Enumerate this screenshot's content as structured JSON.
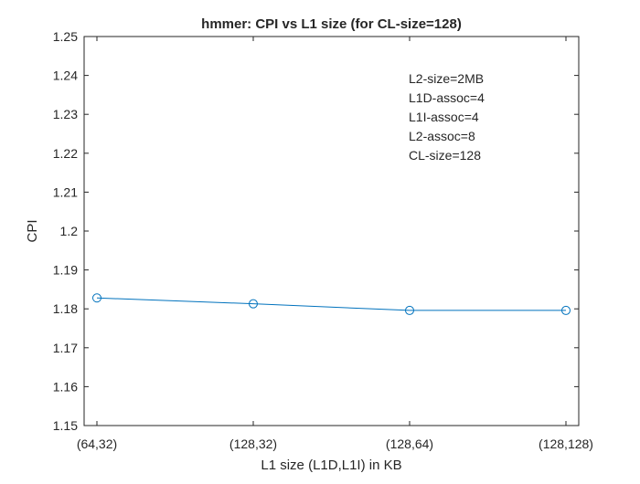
{
  "chart_data": {
    "type": "line",
    "title": "hmmer: CPI vs L1 size (for CL-size=128)",
    "xlabel": "L1 size (L1D,L1I) in KB",
    "ylabel": "CPI",
    "categories": [
      "(64,32)",
      "(128,32)",
      "(128,64)",
      "(128,128)"
    ],
    "series": [
      {
        "values": [
          1.1828,
          1.1813,
          1.1796,
          1.1796
        ],
        "color": "#0072BD",
        "marker": "circle"
      }
    ],
    "ylim": [
      1.15,
      1.25
    ],
    "yticks": [
      1.15,
      1.16,
      1.17,
      1.18,
      1.19,
      1.2,
      1.21,
      1.22,
      1.23,
      1.24,
      1.25
    ],
    "ytick_labels": [
      "1.15",
      "1.16",
      "1.17",
      "1.18",
      "1.19",
      "1.2",
      "1.21",
      "1.22",
      "1.23",
      "1.24",
      "1.25"
    ],
    "grid": false,
    "annotations": [
      "L2-size=2MB",
      "L1D-assoc=4",
      "L1I-assoc=4",
      "L2-assoc=8",
      "CL-size=128"
    ]
  }
}
